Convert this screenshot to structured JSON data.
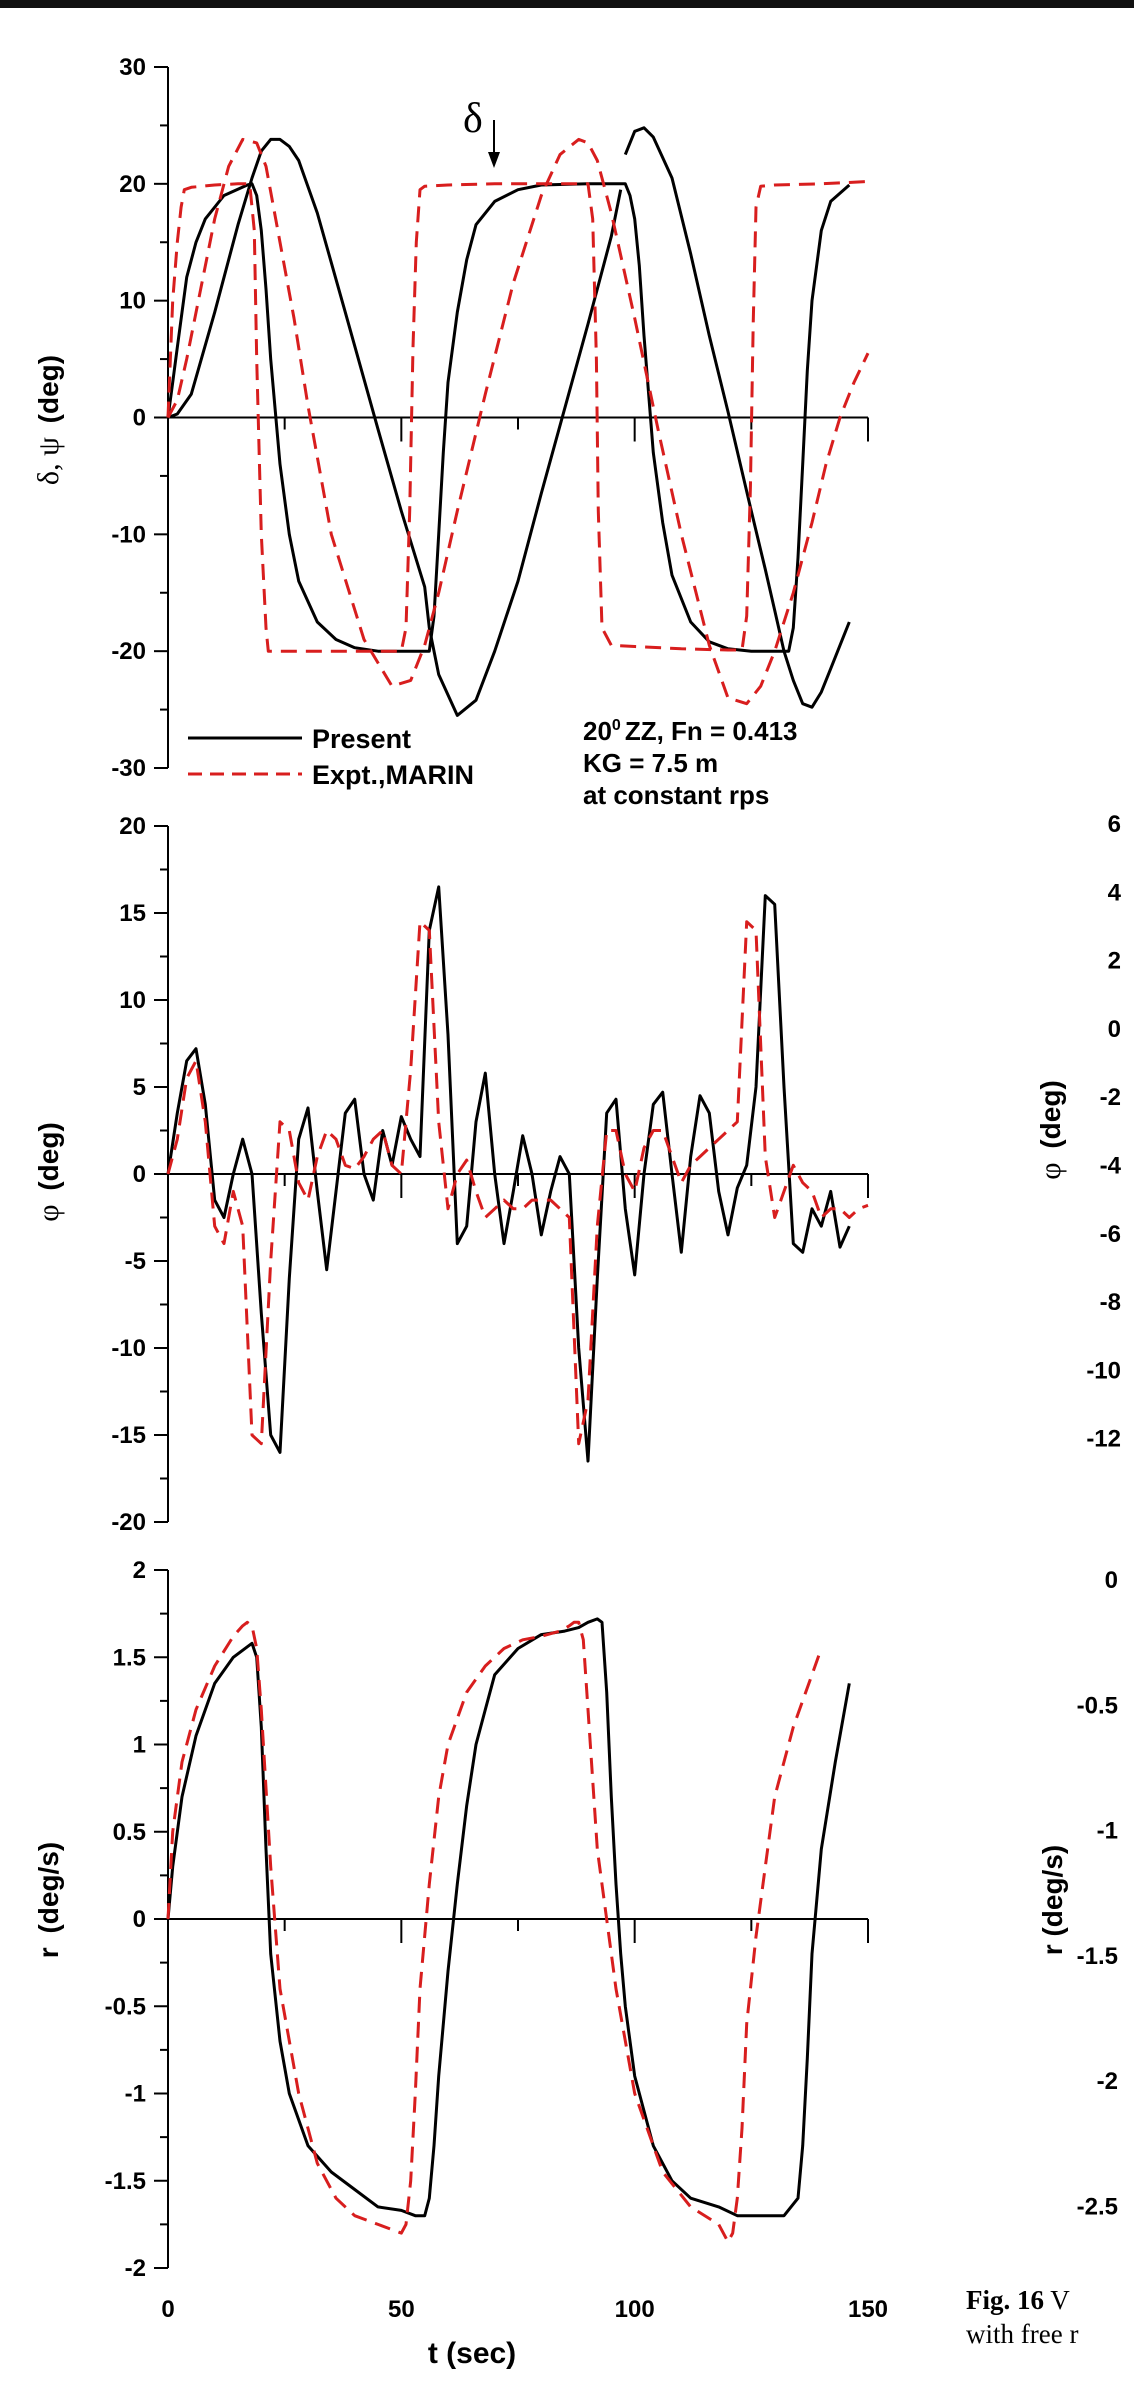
{
  "colors": {
    "present": "#000000",
    "experiment": "#d81e1e",
    "axis": "#000000"
  },
  "legend": {
    "present": "Present",
    "experiment": "Expt.,MARIN"
  },
  "annotation": {
    "line1": "ZZ, Fn = 0.413",
    "line1_prefix": "20",
    "line1_sup": "0",
    "line2": "KG = 7.5 m",
    "line3": "at constant rps"
  },
  "delta_marker": {
    "label": "δ",
    "t": 72,
    "value": 21
  },
  "caption": {
    "label": "Fig. 16",
    "line1_rest": "V",
    "line2": "with free r"
  },
  "chart_data": [
    {
      "type": "line",
      "id": "yaw",
      "ylabel_plain": "δ, ψ",
      "ylabel_unit": "(deg)",
      "ylim": [
        -30,
        30
      ],
      "yticks": [
        "30",
        "20",
        "10",
        "0",
        "-10",
        "-20",
        "-30"
      ],
      "ytick_values": [
        30,
        20,
        10,
        0,
        -10,
        -20,
        -30
      ],
      "xlim": [
        0,
        150
      ],
      "series": [
        {
          "name": "Present",
          "style": "solid",
          "x": [
            0,
            2,
            5,
            10,
            15,
            18,
            20,
            22,
            24,
            26,
            28,
            32,
            38,
            45,
            50,
            55,
            56,
            58,
            62,
            66,
            70,
            75,
            80,
            90,
            95,
            97
          ],
          "values": [
            0,
            0.3,
            2,
            9,
            16.5,
            20.5,
            22.8,
            23.8,
            23.8,
            23.2,
            22,
            17.5,
            9,
            -1,
            -8,
            -14.5,
            -18,
            -22,
            -25.5,
            -24.2,
            -20,
            -14,
            -6.5,
            8,
            15.5,
            19.5
          ]
        },
        {
          "name": "Present",
          "style": "solid",
          "x": [
            98,
            100,
            102,
            104,
            108,
            112,
            116,
            120,
            125,
            128,
            130,
            132,
            134,
            136,
            138,
            140,
            142,
            144,
            146
          ],
          "values": [
            22.5,
            24.5,
            24.8,
            24,
            20.5,
            14,
            7,
            0.5,
            -8,
            -13,
            -16.5,
            -20,
            -22.5,
            -24.5,
            -24.8,
            -23.5,
            -21.5,
            -19.5,
            -17.5
          ]
        },
        {
          "name": "Present",
          "style": "solid",
          "x": [
            0,
            1,
            2,
            3,
            4,
            6,
            8,
            12,
            17,
            18,
            19,
            20,
            21,
            22,
            24,
            26,
            28,
            32,
            36,
            40,
            45,
            50,
            53,
            55,
            56,
            57,
            58,
            59,
            60,
            62,
            64,
            66,
            70,
            75,
            80,
            90,
            95,
            98,
            99,
            100,
            101,
            102,
            104,
            106,
            108,
            112,
            116,
            120,
            125,
            133,
            134,
            135,
            136,
            137,
            138,
            140,
            142,
            146
          ],
          "values": [
            0,
            3,
            6,
            9,
            12,
            15,
            17,
            19,
            19.9,
            20,
            19,
            16,
            11,
            5,
            -4,
            -10,
            -14,
            -17.5,
            -19,
            -19.7,
            -20,
            -20,
            -20,
            -20,
            -20,
            -17,
            -10,
            -3,
            3,
            9,
            13.5,
            16.5,
            18.5,
            19.5,
            19.9,
            20,
            20,
            20,
            19,
            17,
            13,
            7,
            -3,
            -9,
            -13.5,
            -17.5,
            -19.2,
            -19.8,
            -20,
            -20,
            -18,
            -12,
            -4,
            4,
            10,
            16,
            18.5,
            19.9
          ]
        },
        {
          "name": "Expt.,MARIN",
          "style": "dashed",
          "x": [
            0,
            2,
            4,
            7,
            10,
            13,
            16,
            19,
            21,
            24,
            27,
            30,
            35,
            42,
            48,
            52,
            55,
            58,
            62,
            68,
            74,
            80,
            84,
            88,
            90,
            92,
            95,
            100,
            105,
            110,
            116,
            120,
            124,
            127,
            130,
            134,
            138,
            141,
            144,
            147,
            150
          ],
          "values": [
            0,
            1.5,
            5,
            11,
            17,
            21.5,
            23.8,
            23.5,
            21.5,
            15,
            8.5,
            1,
            -10,
            -19,
            -23,
            -22.5,
            -19.5,
            -15,
            -8,
            2,
            11.5,
            19,
            22.5,
            23.8,
            23.5,
            22,
            17.5,
            8.5,
            -1,
            -10,
            -19.5,
            -24,
            -24.5,
            -23,
            -20,
            -15,
            -9,
            -4,
            0,
            3,
            5.5
          ]
        },
        {
          "name": "Expt.,MARIN",
          "style": "dashed",
          "x": [
            0,
            1,
            2,
            2.8,
            3.5,
            5,
            10,
            15,
            17.5,
            18.5,
            19,
            20,
            21,
            21.5,
            22,
            25,
            35,
            45,
            50,
            51,
            51.8,
            52.5,
            53.2,
            54,
            55,
            60,
            70,
            80,
            85,
            90,
            91,
            91.8,
            92.2,
            93,
            95,
            100,
            110,
            120,
            123,
            124,
            124.8,
            125.4,
            126,
            127,
            130,
            140,
            150
          ],
          "values": [
            0,
            10,
            15,
            18,
            19.5,
            19.7,
            19.9,
            20,
            20,
            16,
            5,
            -10,
            -18,
            -20,
            -20,
            -20,
            -20,
            -20,
            -20,
            -18,
            -8,
            6,
            15,
            19.5,
            19.8,
            19.9,
            20,
            20,
            20,
            20,
            17,
            5,
            -8,
            -18,
            -19.5,
            -19.6,
            -19.8,
            -19.9,
            -19.9,
            -17,
            -6,
            8,
            18,
            19.8,
            19.9,
            20,
            20.2
          ]
        }
      ]
    },
    {
      "type": "line",
      "id": "roll",
      "ylabel_plain": "φ",
      "ylabel_unit": "(deg)",
      "ylim": [
        -20,
        20
      ],
      "yticks": [
        "20",
        "15",
        "10",
        "5",
        "0",
        "-5",
        "-10",
        "-15",
        "-20"
      ],
      "ytick_values": [
        20,
        15,
        10,
        5,
        0,
        -5,
        -10,
        -15,
        -20
      ],
      "xlim": [
        0,
        150
      ],
      "series": [
        {
          "name": "Present",
          "style": "solid",
          "x": [
            0,
            2,
            4,
            6,
            8,
            10,
            12,
            14,
            16,
            18,
            20,
            22,
            24,
            26,
            28,
            30,
            32,
            34,
            36,
            38,
            40,
            42,
            44,
            46,
            48,
            50,
            52,
            54,
            56,
            58,
            60,
            62,
            64,
            66,
            68,
            70,
            72,
            74,
            76,
            78,
            80,
            82,
            84,
            86,
            88,
            90,
            92,
            94,
            96,
            98,
            100,
            102,
            104,
            106,
            108,
            110,
            112,
            114,
            116,
            118,
            120,
            122,
            124,
            126,
            128,
            130,
            132,
            134,
            136,
            138,
            140,
            142,
            144,
            146
          ],
          "values": [
            0,
            3.5,
            6.5,
            7.2,
            4,
            -1.5,
            -2.5,
            0,
            2,
            0,
            -8,
            -15,
            -16,
            -6,
            2,
            3.8,
            -1,
            -5.5,
            -1,
            3.5,
            4.3,
            0,
            -1.5,
            2.5,
            0.5,
            3.3,
            2,
            1,
            14,
            16.5,
            8,
            -4,
            -3,
            3,
            5.8,
            0,
            -4,
            -1,
            2.2,
            0,
            -3.5,
            -1,
            1,
            0,
            -10,
            -16.5,
            -6,
            3.5,
            4.3,
            -2,
            -5.8,
            0,
            4,
            4.7,
            0,
            -4.5,
            1,
            4.5,
            3.5,
            -1,
            -3.5,
            -0.8,
            0.5,
            5,
            16,
            15.5,
            5,
            -4,
            -4.5,
            -2,
            -3,
            -1,
            -4.2,
            -3
          ]
        },
        {
          "name": "Expt.,MARIN",
          "style": "dashed",
          "x": [
            0,
            2,
            4,
            6,
            8,
            10,
            12,
            14,
            16,
            18,
            20,
            22,
            24,
            26,
            28,
            30,
            32,
            34,
            36,
            38,
            40,
            42,
            44,
            46,
            48,
            50,
            52,
            54,
            56,
            58,
            60,
            62,
            64,
            66,
            68,
            70,
            72,
            74,
            76,
            78,
            80,
            82,
            84,
            86,
            88,
            90,
            92,
            94,
            96,
            98,
            100,
            102,
            104,
            106,
            108,
            110,
            112,
            114,
            116,
            118,
            120,
            122,
            124,
            126,
            128,
            130,
            132,
            134,
            136,
            138,
            140,
            142,
            144,
            146,
            148,
            150
          ],
          "values": [
            0,
            2,
            5.5,
            6.5,
            3,
            -3,
            -4,
            -1,
            -3,
            -15,
            -15.5,
            -5,
            3,
            2.5,
            -0.5,
            -1.5,
            1,
            2.5,
            2,
            0.5,
            0.3,
            1,
            2,
            2.5,
            0.5,
            0,
            6,
            14.5,
            14,
            3,
            -2,
            0,
            0.8,
            -1,
            -2.5,
            -2,
            -1.5,
            -2,
            -2,
            -1.5,
            -1.5,
            -1.5,
            -2,
            -2.5,
            -15.5,
            -13,
            -3,
            2.5,
            2.5,
            0,
            -1,
            1.5,
            2.5,
            2.5,
            1,
            -0.5,
            0.5,
            1,
            1.5,
            2,
            2.5,
            3,
            14.5,
            14,
            1,
            -2.5,
            -1,
            0.5,
            -0.5,
            -1,
            -2.5,
            -2,
            -2,
            -2.5,
            -2,
            -1.8
          ]
        }
      ]
    },
    {
      "type": "line",
      "id": "yawrate",
      "ylabel_plain": "r",
      "ylabel_unit": "(deg/s)",
      "ylim": [
        -2,
        2
      ],
      "yticks": [
        "2",
        "1.5",
        "1",
        "0.5",
        "0",
        "-0.5",
        "-1",
        "-1.5",
        "-2"
      ],
      "ytick_values": [
        2,
        1.5,
        1,
        0.5,
        0,
        -0.5,
        -1,
        -1.5,
        -2
      ],
      "xlim": [
        0,
        150
      ],
      "xticks": [
        "0",
        "50",
        "100",
        "150"
      ],
      "xtick_values": [
        0,
        50,
        100,
        150
      ],
      "xlabel": "t (sec)",
      "series": [
        {
          "name": "Present",
          "style": "solid",
          "x": [
            0,
            1,
            3,
            6,
            10,
            14,
            17,
            18,
            19,
            20,
            21,
            22,
            24,
            26,
            30,
            35,
            40,
            45,
            50,
            53,
            55,
            56,
            57,
            58,
            60,
            62,
            64,
            66,
            68,
            70,
            75,
            80,
            85,
            88,
            90,
            92,
            93,
            94,
            95,
            96,
            97,
            98,
            100,
            104,
            108,
            112,
            118,
            122,
            126,
            132,
            135,
            136,
            137,
            138,
            140,
            143,
            146
          ],
          "values": [
            0,
            0.3,
            0.7,
            1.05,
            1.35,
            1.5,
            1.56,
            1.58,
            1.5,
            1.1,
            0.4,
            -0.2,
            -0.7,
            -1.0,
            -1.3,
            -1.45,
            -1.55,
            -1.65,
            -1.67,
            -1.7,
            -1.7,
            -1.6,
            -1.3,
            -0.9,
            -0.3,
            0.2,
            0.65,
            1.0,
            1.2,
            1.4,
            1.55,
            1.63,
            1.65,
            1.67,
            1.7,
            1.72,
            1.7,
            1.3,
            0.7,
            0.2,
            -0.2,
            -0.5,
            -0.9,
            -1.3,
            -1.5,
            -1.6,
            -1.65,
            -1.7,
            -1.7,
            -1.7,
            -1.6,
            -1.3,
            -0.8,
            -0.2,
            0.4,
            0.9,
            1.35
          ]
        },
        {
          "name": "Expt.,MARIN",
          "style": "dashed",
          "x": [
            0,
            1,
            3,
            6,
            10,
            14,
            16,
            17,
            18,
            19,
            20,
            22,
            24,
            28,
            32,
            36,
            40,
            45,
            50,
            51,
            52,
            53,
            54,
            56,
            58,
            60,
            64,
            68,
            72,
            76,
            80,
            84,
            86,
            87,
            88,
            89,
            90,
            92,
            96,
            100,
            106,
            112,
            118,
            120,
            121,
            122,
            123,
            124,
            126,
            128,
            130,
            134,
            138,
            140
          ],
          "values": [
            0,
            0.5,
            0.9,
            1.2,
            1.45,
            1.62,
            1.68,
            1.7,
            1.68,
            1.55,
            1.2,
            0.3,
            -0.4,
            -1.0,
            -1.4,
            -1.6,
            -1.7,
            -1.75,
            -1.8,
            -1.75,
            -1.5,
            -1.0,
            -0.4,
            0.2,
            0.7,
            1.0,
            1.3,
            1.45,
            1.55,
            1.6,
            1.62,
            1.65,
            1.68,
            1.7,
            1.7,
            1.6,
            1.2,
            0.4,
            -0.4,
            -1.0,
            -1.45,
            -1.65,
            -1.75,
            -1.85,
            -1.8,
            -1.6,
            -1.2,
            -0.6,
            -0.1,
            0.3,
            0.7,
            1.1,
            1.4,
            1.55
          ]
        }
      ]
    }
  ],
  "right_panel": {
    "roll_ylabel_plain": "φ",
    "roll_ylabel_unit": "(deg)",
    "roll_ticks": [
      "6",
      "4",
      "2",
      "0",
      "-2",
      "-4",
      "-6",
      "-8",
      "-10",
      "-12"
    ],
    "rate_ylabel": "r (deg/s)",
    "rate_ticks": [
      "0",
      "-0.5",
      "-1",
      "-1.5",
      "-2",
      "-2.5"
    ]
  }
}
